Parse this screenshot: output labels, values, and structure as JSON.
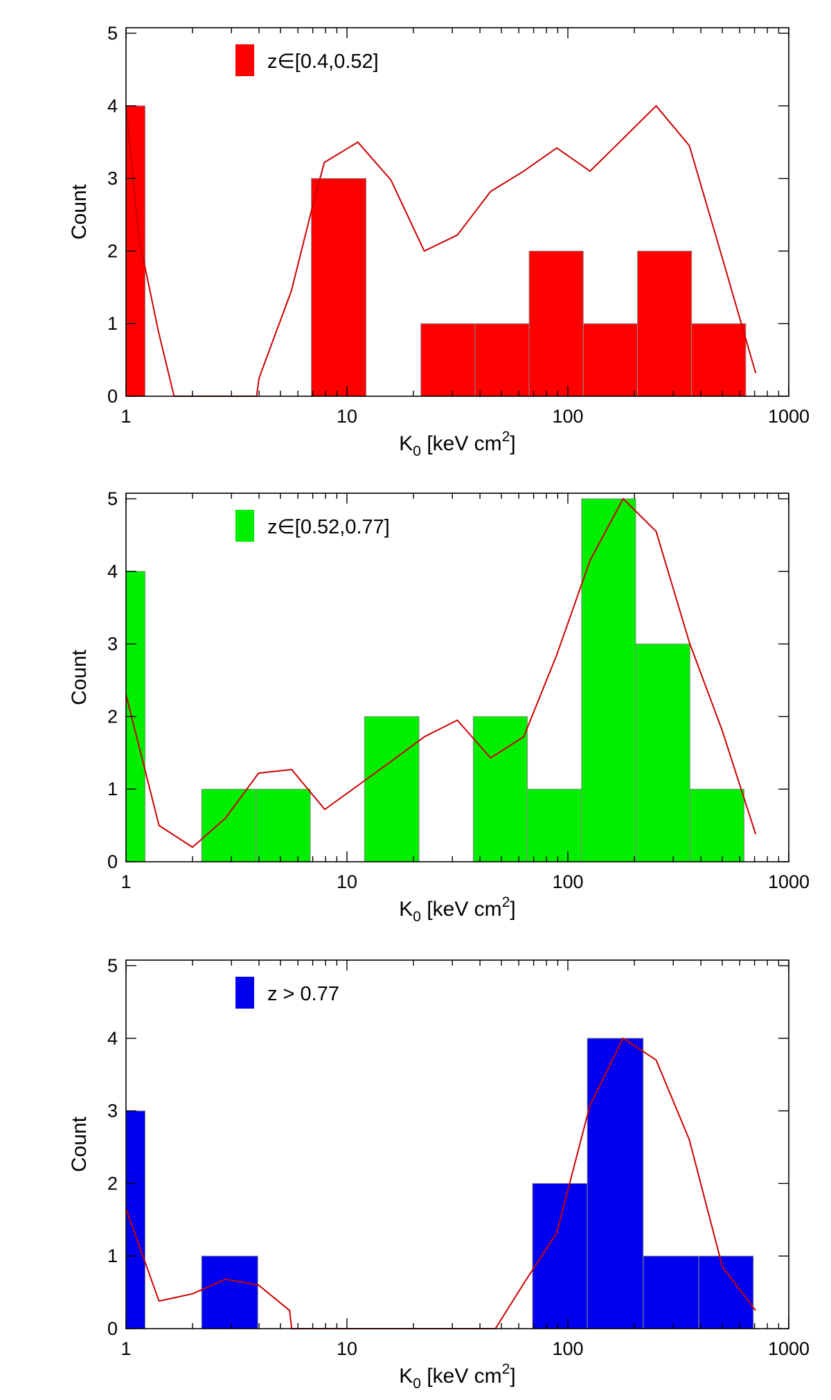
{
  "chart_data": [
    {
      "type": "bar",
      "panel": "top",
      "legend": "z∈[0.4,0.52]",
      "color": "#ff0000",
      "xlabel": "K",
      "xlabel_sub": "0",
      "xlabel_rest": " [keV cm",
      "xlabel_sup": "2",
      "xlabel_end": "]",
      "ylabel": "Count",
      "xscale": "log",
      "xlim": [
        1,
        1000
      ],
      "ylim": [
        0,
        5
      ],
      "xticks": [
        "1",
        "10",
        "100",
        "1000"
      ],
      "yticks": [
        "0",
        "1",
        "2",
        "3",
        "4",
        "5"
      ],
      "bin_edges": [
        1,
        1.22,
        6.9,
        12.2,
        21.6,
        38.0,
        66.8,
        117.5,
        206.6,
        363.3,
        639.0
      ],
      "bin_counts": [
        4,
        0,
        3,
        0,
        1,
        1,
        2,
        1,
        2,
        1
      ],
      "curve": {
        "x": [
          1.0,
          1.14,
          1.4,
          1.65,
          3.9,
          4.0,
          5.6,
          6.9,
          7.9,
          11.2,
          15.8,
          22.4,
          31.6,
          44.7,
          63.1,
          89.1,
          126,
          178,
          251,
          355,
          501,
          708
        ],
        "y": [
          4.0,
          2.2,
          0.9,
          0.0,
          0.0,
          0.25,
          1.45,
          2.55,
          3.22,
          3.5,
          2.98,
          2.0,
          2.22,
          2.82,
          3.1,
          3.42,
          3.1,
          3.55,
          4.0,
          3.45,
          1.9,
          0.32
        ]
      }
    },
    {
      "type": "bar",
      "panel": "middle",
      "legend": "z∈[0.52,0.77]",
      "color": "#00ee00",
      "xlabel": "K",
      "xlabel_sub": "0",
      "xlabel_rest": " [keV cm",
      "xlabel_sup": "2",
      "xlabel_end": "]",
      "ylabel": "Count",
      "xscale": "log",
      "xlim": [
        1,
        1000
      ],
      "ylim": [
        0,
        5
      ],
      "xticks": [
        "1",
        "10",
        "100",
        "1000"
      ],
      "yticks": [
        "0",
        "1",
        "2",
        "3",
        "4",
        "5"
      ],
      "bin_edges": [
        1,
        1.22,
        2.2,
        3.88,
        6.83,
        12.0,
        21.2,
        37.3,
        65.6,
        115.4,
        203.0,
        357.0,
        628.0
      ],
      "bin_counts": [
        4,
        0,
        1,
        1,
        0,
        2,
        0,
        2,
        1,
        5,
        3,
        1
      ],
      "curve": {
        "x": [
          1.0,
          1.41,
          2.0,
          2.82,
          3.98,
          5.62,
          7.94,
          11.2,
          15.8,
          22.4,
          31.6,
          44.7,
          63.1,
          89.1,
          126,
          178,
          251,
          355,
          501,
          708
        ],
        "y": [
          2.3,
          0.5,
          0.2,
          0.6,
          1.22,
          1.27,
          0.72,
          1.05,
          1.38,
          1.72,
          1.95,
          1.43,
          1.72,
          2.85,
          4.15,
          5.0,
          4.55,
          3.02,
          1.8,
          0.38
        ]
      }
    },
    {
      "type": "bar",
      "panel": "bottom",
      "legend": "z > 0.77",
      "color": "#0000ee",
      "xlabel": "K",
      "xlabel_sub": "0",
      "xlabel_rest": " [keV cm",
      "xlabel_sup": "2",
      "xlabel_end": "]",
      "ylabel": "Count",
      "xscale": "log",
      "xlim": [
        1,
        1000
      ],
      "ylim": [
        0,
        5
      ],
      "xticks": [
        "1",
        "10",
        "100",
        "1000"
      ],
      "yticks": [
        "0",
        "1",
        "2",
        "3",
        "4",
        "5"
      ],
      "bin_edges": [
        1,
        1.22,
        2.2,
        3.95,
        7.1,
        12.8,
        23.0,
        41.4,
        69.2,
        122.5,
        219.4,
        391.6,
        691.0
      ],
      "bin_counts": [
        3,
        0,
        1,
        0,
        0,
        0,
        0,
        0,
        2,
        4,
        1,
        1
      ],
      "curve": {
        "x": [
          1.0,
          1.41,
          2.0,
          2.82,
          3.98,
          5.5,
          5.62,
          47,
          63.1,
          89.1,
          126,
          178,
          251,
          355,
          501,
          708
        ],
        "y": [
          1.65,
          0.38,
          0.48,
          0.68,
          0.6,
          0.25,
          0.0,
          0.0,
          0.62,
          1.32,
          3.08,
          4.0,
          3.7,
          2.6,
          0.85,
          0.25
        ]
      }
    }
  ]
}
